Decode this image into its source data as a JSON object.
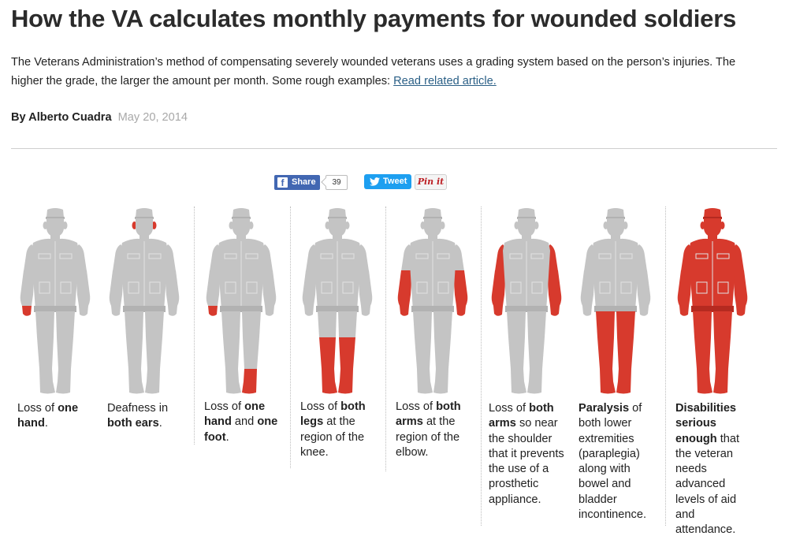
{
  "article": {
    "title": "How the VA calculates monthly payments for wounded soldiers",
    "dek": "The Veterans Administration’s method of compensating severely wounded veterans uses a grading system based on the person’s injuries. The higher the grade, the larger the amount per month. Some rough examples:",
    "related_link": "Read related article.",
    "author": "By Alberto Cuadra",
    "date": "May 20, 2014"
  },
  "share": {
    "facebook_label": "Share",
    "facebook_count": "39",
    "twitter_label": "Tweet",
    "pinterest_label": "Pin it"
  },
  "colors": {
    "injured": "#d73a2d",
    "uninjured": "#c4c4c4",
    "link": "#2a5f86"
  },
  "examples": [
    {
      "injured_parts": [
        "right-hand"
      ],
      "caption": [
        {
          "t": "Loss of "
        },
        {
          "t": "one hand",
          "b": true
        },
        {
          "t": "."
        }
      ]
    },
    {
      "injured_parts": [
        "ears"
      ],
      "caption": [
        {
          "t": "Deafness in "
        },
        {
          "t": "both ears",
          "b": true
        },
        {
          "t": "."
        }
      ]
    },
    {
      "injured_parts": [
        "right-hand",
        "left-foot"
      ],
      "caption": [
        {
          "t": "Loss of "
        },
        {
          "t": "one hand",
          "b": true
        },
        {
          "t": " and "
        },
        {
          "t": "one foot",
          "b": true
        },
        {
          "t": "."
        }
      ]
    },
    {
      "injured_parts": [
        "both-lower-legs"
      ],
      "caption": [
        {
          "t": "Loss of "
        },
        {
          "t": "both legs",
          "b": true
        },
        {
          "t": " at the region of the knee."
        }
      ]
    },
    {
      "injured_parts": [
        "both-forearms"
      ],
      "caption": [
        {
          "t": "Loss of "
        },
        {
          "t": "both arms",
          "b": true
        },
        {
          "t": " at the region of the elbow."
        }
      ]
    },
    {
      "injured_parts": [
        "both-arms"
      ],
      "caption": [
        {
          "t": "Loss of "
        },
        {
          "t": "both arms",
          "b": true
        },
        {
          "t": " so near the shoulder that it prevents the use of a prosthetic appliance."
        }
      ]
    },
    {
      "injured_parts": [
        "both-full-legs"
      ],
      "caption": [
        {
          "t": "Paralysis",
          "b": true
        },
        {
          "t": " of both lower extremities (paraplegia) along with bowel and bladder incontinence."
        }
      ]
    },
    {
      "injured_parts": [
        "whole-body"
      ],
      "caption": [
        {
          "t": "Disabilities serious enough",
          "b": true
        },
        {
          "t": " that the veteran needs advanced levels of aid and attendance."
        }
      ]
    }
  ]
}
